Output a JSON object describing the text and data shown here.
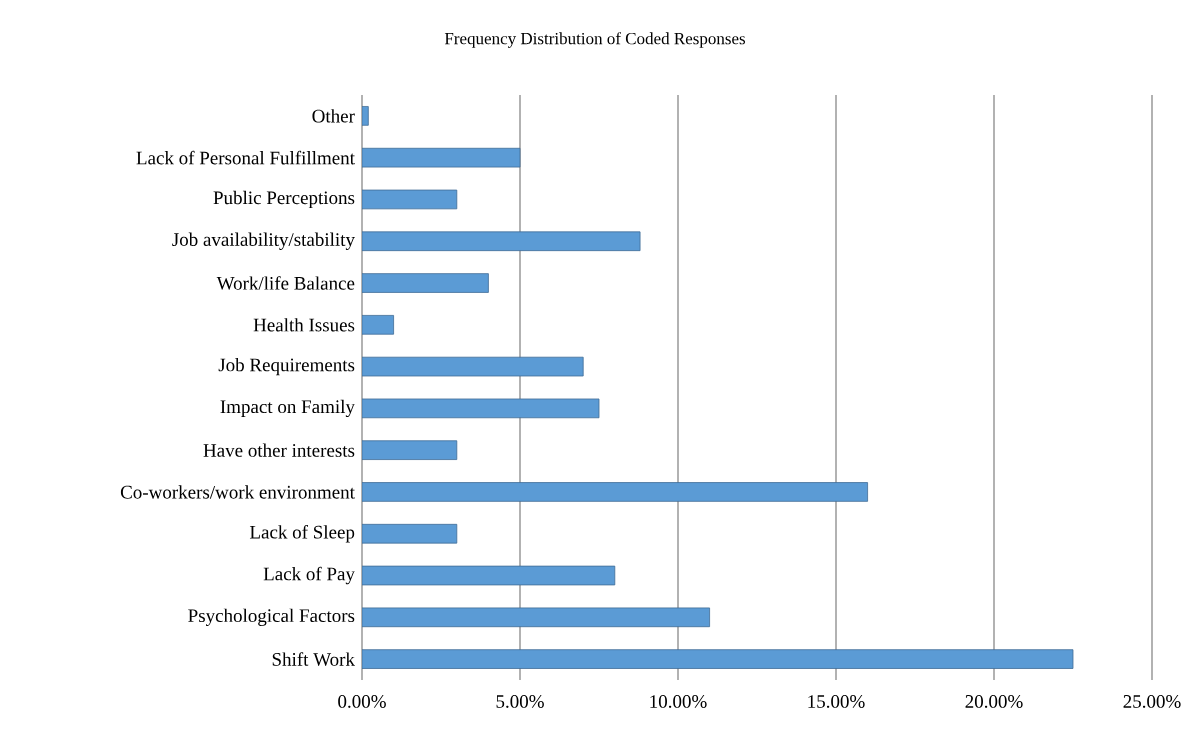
{
  "chart_data": {
    "type": "bar",
    "orientation": "horizontal",
    "title": "Frequency Distribution of Coded Responses",
    "categories": [
      "Other",
      "Lack of Personal Fulfillment",
      "Public Perceptions",
      "Job availability/stability",
      "Work/life Balance",
      "Health Issues",
      "Job Requirements",
      "Impact on Family",
      "Have other interests",
      "Co-workers/work environment",
      "Lack of Sleep",
      "Lack of Pay",
      "Psychological Factors",
      "Shift Work"
    ],
    "values": [
      0.2,
      5.0,
      3.0,
      8.8,
      4.0,
      1.0,
      7.0,
      7.5,
      3.0,
      16.0,
      3.0,
      8.0,
      11.0,
      22.5
    ],
    "color": "#5b9bd5",
    "xlim": [
      0,
      25
    ],
    "xticks": [
      {
        "value": 0,
        "label": "0.00%"
      },
      {
        "value": 5,
        "label": "5.00%"
      },
      {
        "value": 10,
        "label": "10.00%"
      },
      {
        "value": 15,
        "label": "15.00%"
      },
      {
        "value": 20,
        "label": "20.00%"
      },
      {
        "value": 25,
        "label": "25.00%"
      }
    ],
    "grid": "x"
  }
}
